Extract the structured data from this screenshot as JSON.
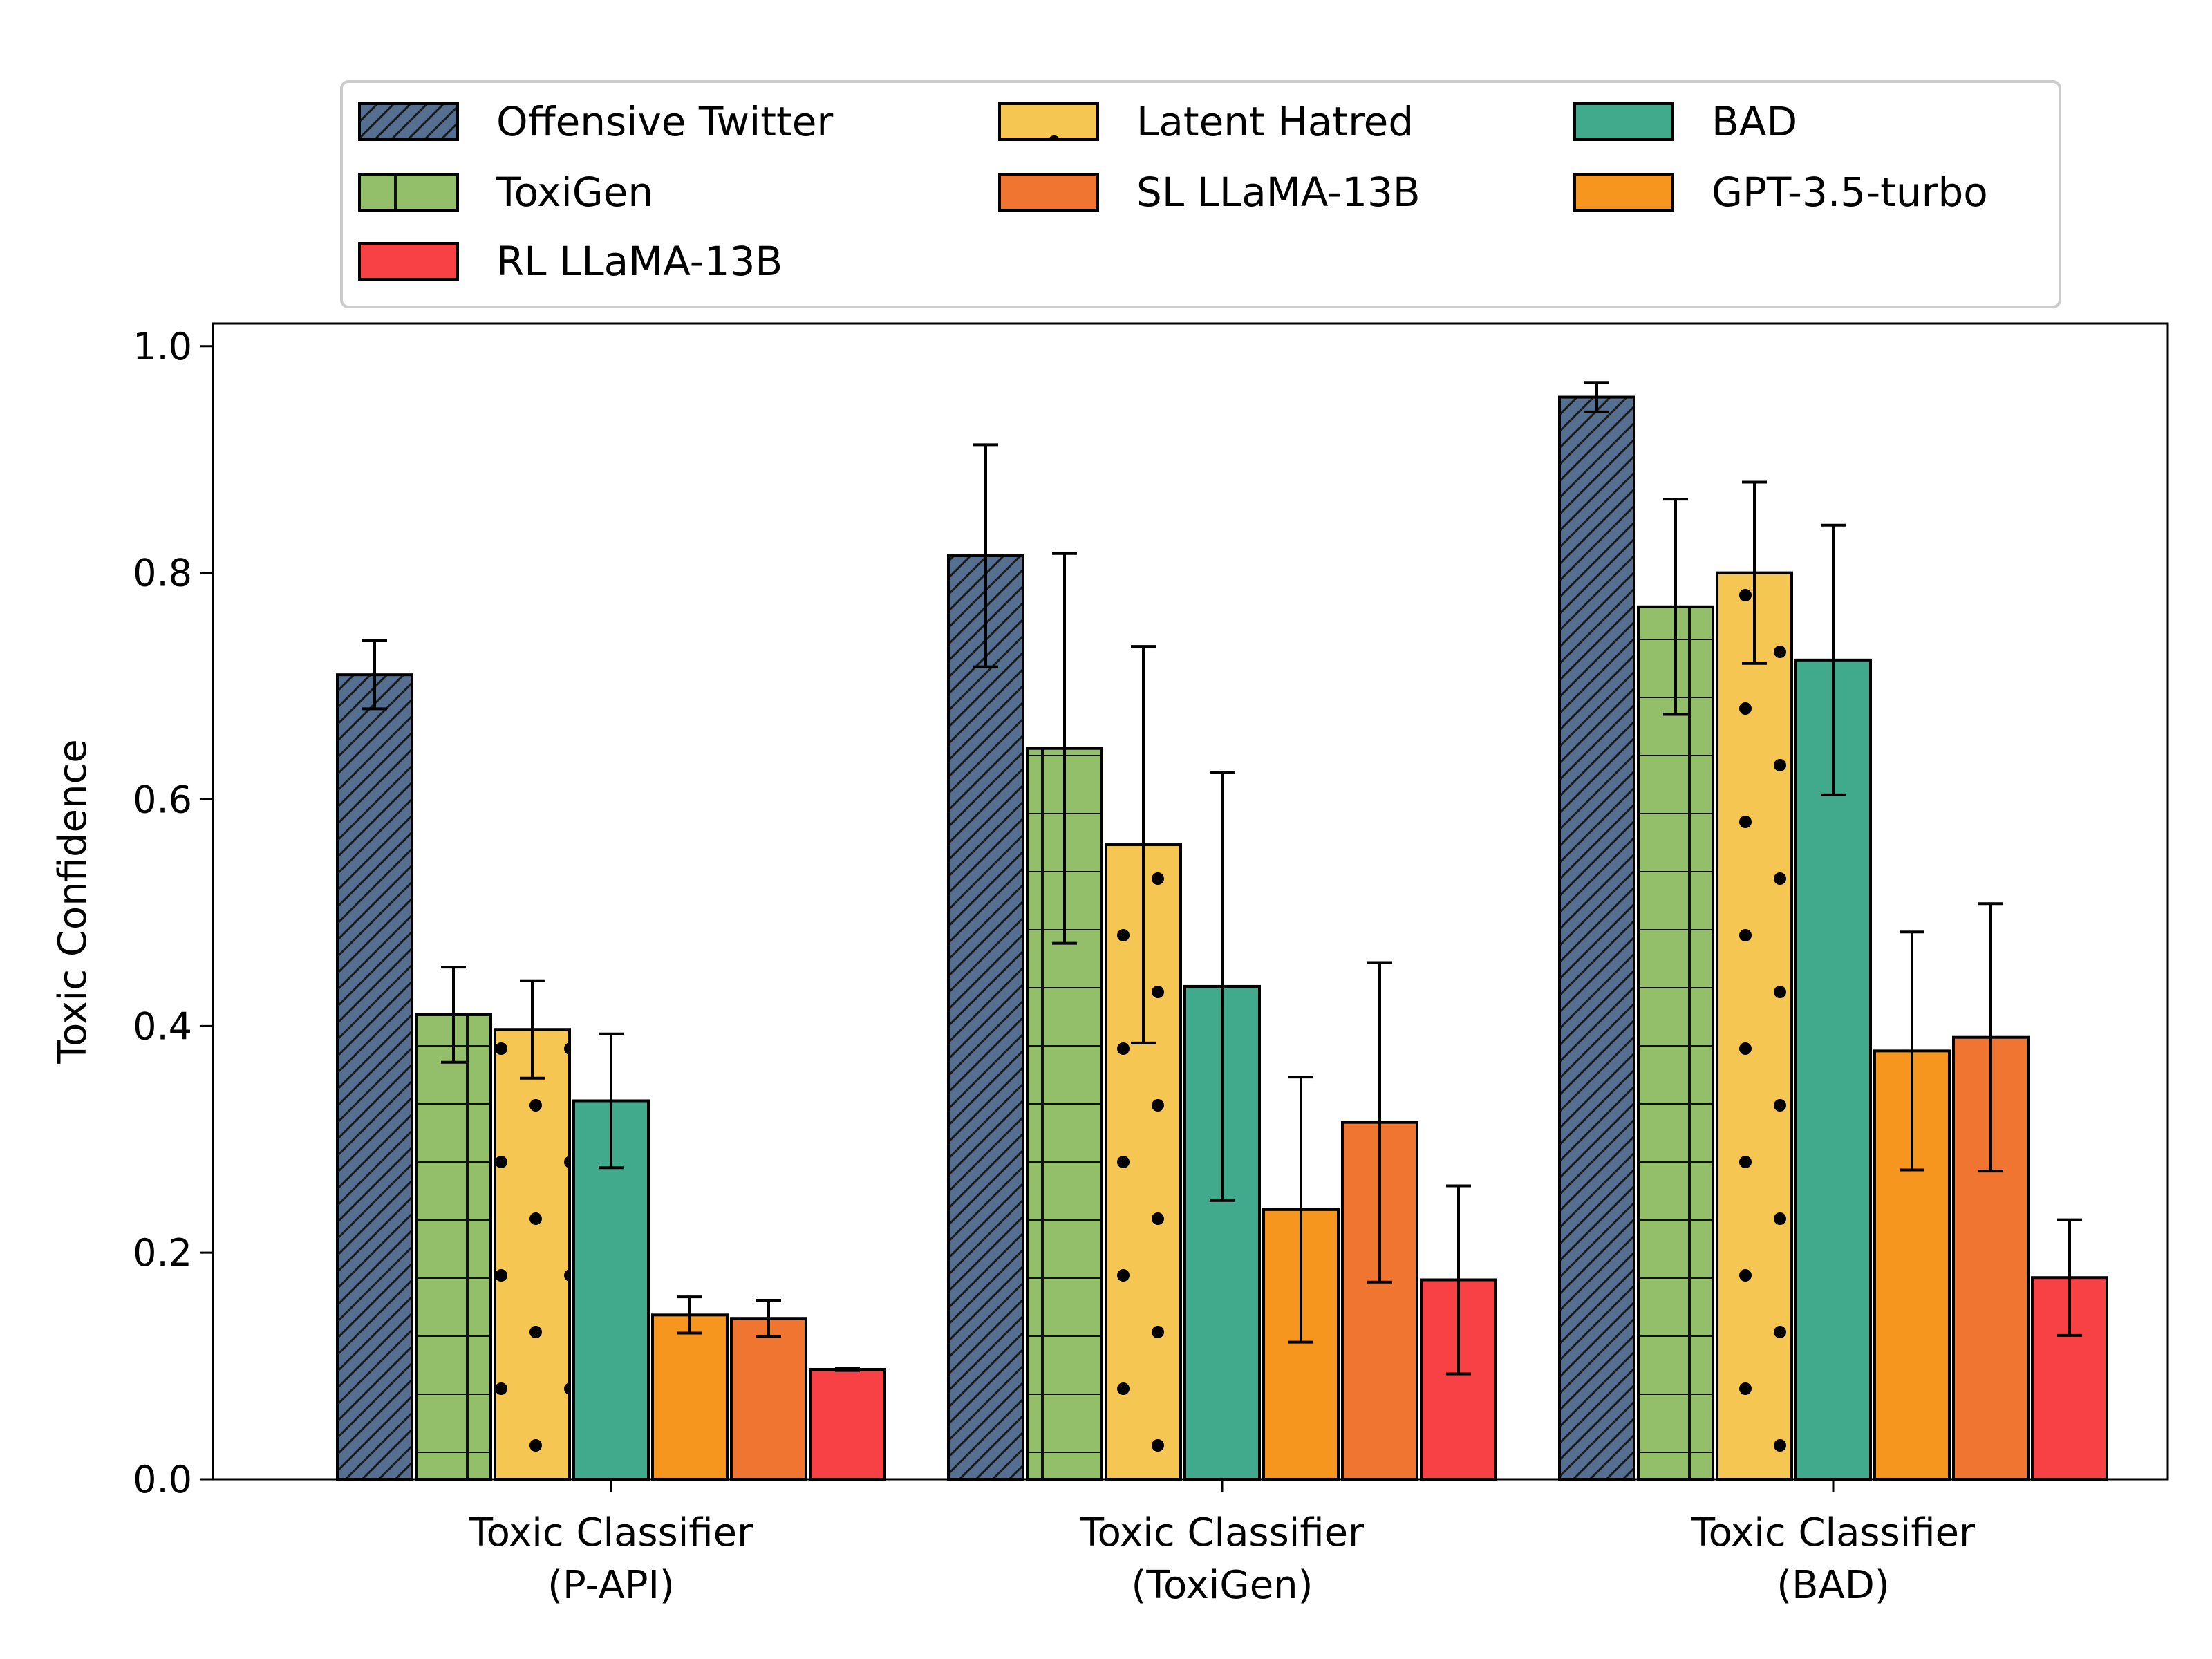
{
  "chart_data": {
    "type": "bar",
    "title": "",
    "xlabel": "",
    "ylabel": "Toxic Confidence",
    "ylim": [
      0,
      1.02
    ],
    "yticks": [
      "0.0",
      "0.2",
      "0.4",
      "0.6",
      "0.8",
      "1.0"
    ],
    "categories": [
      [
        "Toxic Classifier",
        "(P-API)"
      ],
      [
        "Toxic Classifier",
        "(ToxiGen)"
      ],
      [
        "Toxic Classifier",
        "(BAD)"
      ]
    ],
    "legend_position": "above plot",
    "series": [
      {
        "name": "Offensive Twitter",
        "color": "#546f8f",
        "pattern": "diagonal",
        "values": [
          0.71,
          0.815,
          0.955
        ],
        "errors": [
          0.03,
          0.098,
          0.013
        ]
      },
      {
        "name": "ToxiGen",
        "color": "#93bf6b",
        "pattern": "grid",
        "values": [
          0.41,
          0.645,
          0.77
        ],
        "errors": [
          0.042,
          0.172,
          0.095
        ]
      },
      {
        "name": "Latent Hatred",
        "color": "#f6c652",
        "pattern": "dots",
        "values": [
          0.397,
          0.56,
          0.8
        ],
        "errors": [
          0.043,
          0.175,
          0.08
        ]
      },
      {
        "name": "BAD",
        "color": "#42aa8c",
        "pattern": "none",
        "values": [
          0.334,
          0.435,
          0.723
        ],
        "errors": [
          0.059,
          0.189,
          0.119
        ]
      },
      {
        "name": "GPT-3.5-turbo",
        "color": "#f6961f",
        "pattern": "none",
        "values": [
          0.145,
          0.238,
          0.378
        ],
        "errors": [
          0.016,
          0.117,
          0.105
        ]
      },
      {
        "name": "SL LLaMA-13B",
        "color": "#f07530",
        "pattern": "none",
        "values": [
          0.142,
          0.315,
          0.39
        ],
        "errors": [
          0.016,
          0.141,
          0.118
        ]
      },
      {
        "name": "RL LLaMA-13B",
        "color": "#f84144",
        "pattern": "none",
        "values": [
          0.097,
          0.176,
          0.178
        ],
        "errors": [
          0.001,
          0.083,
          0.051
        ]
      }
    ],
    "legend_order": [
      "Offensive Twitter",
      "Latent Hatred",
      "BAD",
      "ToxiGen",
      "SL LLaMA-13B",
      "GPT-3.5-turbo",
      "RL LLaMA-13B"
    ]
  }
}
